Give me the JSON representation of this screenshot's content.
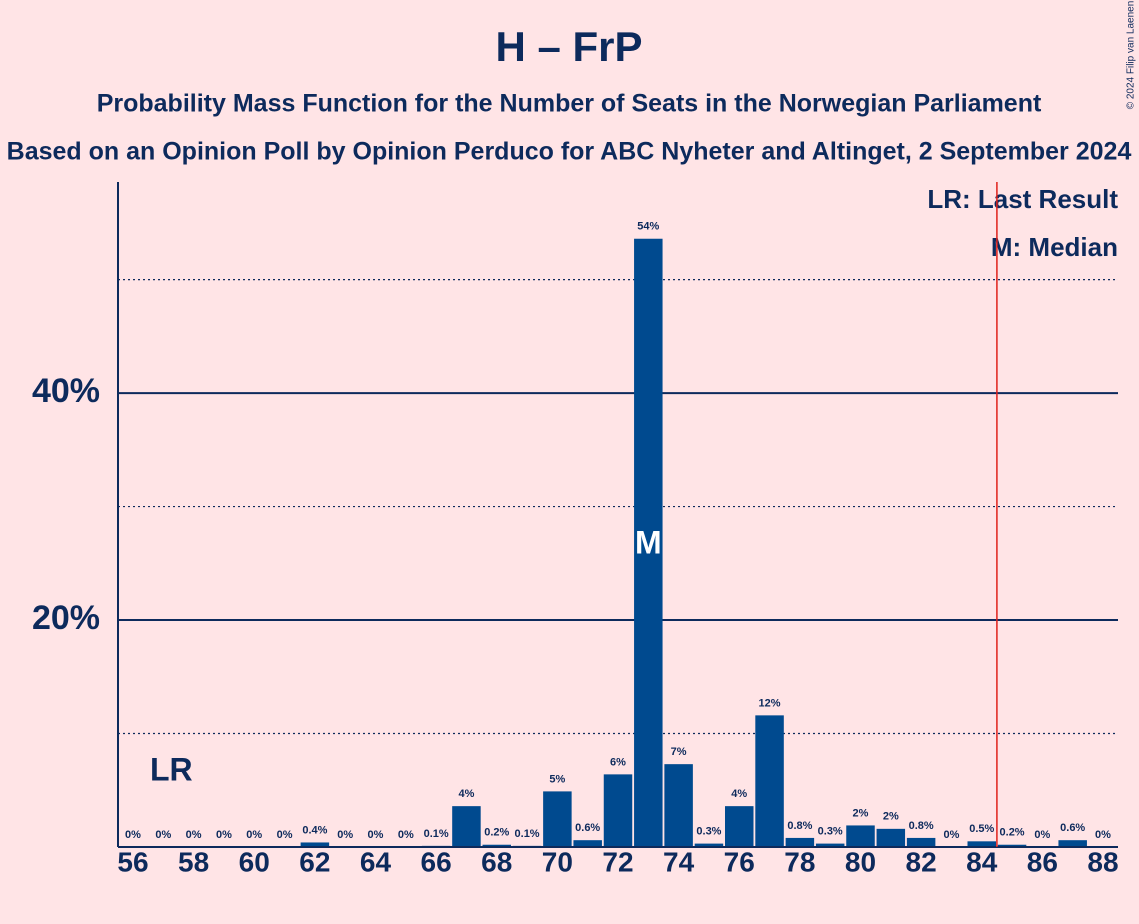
{
  "chart_data": {
    "type": "bar",
    "title": "H – FrP",
    "subtitle": "Probability Mass Function for the Number of Seats in the Norwegian Parliament",
    "subtitle2": "Based on an Opinion Poll by Opinion Perduco for ABC Nyheter and Altinget, 2 September 2024",
    "copyright": "© 2024 Filip van Laenen",
    "x": [
      56,
      57,
      58,
      59,
      60,
      61,
      62,
      63,
      64,
      65,
      66,
      67,
      68,
      69,
      70,
      71,
      72,
      73,
      74,
      75,
      76,
      77,
      78,
      79,
      80,
      81,
      82,
      83,
      84,
      85,
      86,
      87,
      88
    ],
    "values": [
      0,
      0,
      0,
      0,
      0,
      0,
      0.4,
      0,
      0,
      0,
      0.1,
      3.6,
      0.2,
      0.1,
      4.9,
      0.6,
      6.4,
      53.6,
      7.3,
      0.3,
      3.6,
      11.6,
      0.8,
      0.3,
      1.9,
      1.6,
      0.8,
      0,
      0.5,
      0.2,
      0,
      0.6,
      0
    ],
    "value_labels": [
      "0%",
      "0%",
      "0%",
      "0%",
      "0%",
      "0%",
      "0.4%",
      "0%",
      "0%",
      "0%",
      "0.1%",
      "4%",
      "0.2%",
      "0.1%",
      "5%",
      "0.6%",
      "6%",
      "54%",
      "7%",
      "0.3%",
      "4%",
      "12%",
      "0.8%",
      "0.3%",
      "2%",
      "2%",
      "0.8%",
      "0%",
      "0.5%",
      "0.2%",
      "0%",
      "0.6%",
      "0%"
    ],
    "color": "#004a8f",
    "xlim": [
      55.5,
      88.5
    ],
    "xticks": [
      56,
      58,
      60,
      62,
      64,
      66,
      68,
      70,
      72,
      74,
      76,
      78,
      80,
      82,
      84,
      86,
      88
    ],
    "ylim": [
      0,
      58.6
    ],
    "yticks": [
      {
        "value": 20,
        "label": "20%"
      },
      {
        "value": 40,
        "label": "40%"
      }
    ],
    "minor_grid": [
      10,
      30,
      50
    ],
    "grid": true,
    "threshold": 84.5,
    "threshold_color": "#e0201b",
    "annotations": [
      {
        "text": "LR",
        "x": 57
      },
      {
        "text": "M",
        "x": 73
      }
    ],
    "legend": [
      "LR: Last Result",
      "M: Median"
    ]
  }
}
